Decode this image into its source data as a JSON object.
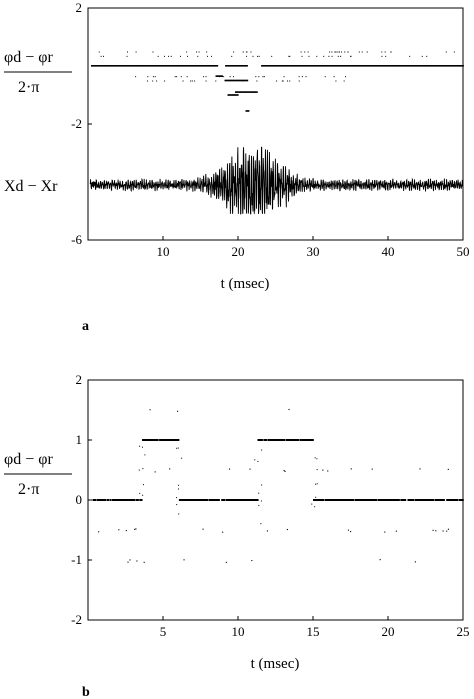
{
  "chart_data": [
    {
      "panel": "a",
      "type": "scatter",
      "xlabel": "t (msec)",
      "xlim": [
        0,
        50
      ],
      "ylim": [
        -6,
        2
      ],
      "xticks": [
        10,
        20,
        30,
        40,
        50
      ],
      "yticks": [
        2,
        -2,
        -6
      ],
      "ylabel_top": {
        "num": "φd − φr",
        "den": "2·π"
      },
      "ylabel_bottom": "Xd − Xr",
      "series": [
        {
          "kind": "scatter",
          "baseline": 0,
          "levels_top": [
            0.5,
            0.35
          ],
          "levels_bottom": [
            -0.35,
            -0.5,
            -0.9,
            -1.0
          ],
          "dense_break": [
            17,
            23
          ]
        },
        {
          "kind": "line",
          "baseline": -4.1,
          "peak_time": 22,
          "peak_amplitude": 1.3,
          "noise_amplitude": 0.18,
          "min_value": -5.1,
          "max_value": -2.8
        }
      ]
    },
    {
      "panel": "b",
      "type": "scatter",
      "xlabel": "t (msec)",
      "xlim": [
        0,
        25
      ],
      "ylim": [
        -2,
        2
      ],
      "xticks": [
        5,
        10,
        15,
        20,
        25
      ],
      "yticks": [
        2,
        1,
        0,
        -1,
        -2
      ],
      "ylabel": {
        "num": "φd − φr",
        "den": "2·π"
      },
      "segments": [
        {
          "x0": 0.3,
          "x1": 3.6,
          "y": 0
        },
        {
          "x0": 3.6,
          "x1": 6.0,
          "y": 1
        },
        {
          "x0": 6.0,
          "x1": 11.3,
          "y": 0
        },
        {
          "x0": 11.3,
          "x1": 15.0,
          "y": 1
        },
        {
          "x0": 15.0,
          "x1": 25.0,
          "y": 0
        }
      ],
      "half_levels": [
        1.5,
        0.5,
        -0.5,
        -1.0
      ]
    }
  ],
  "labels": {
    "panel_a": "a",
    "panel_b": "b"
  }
}
